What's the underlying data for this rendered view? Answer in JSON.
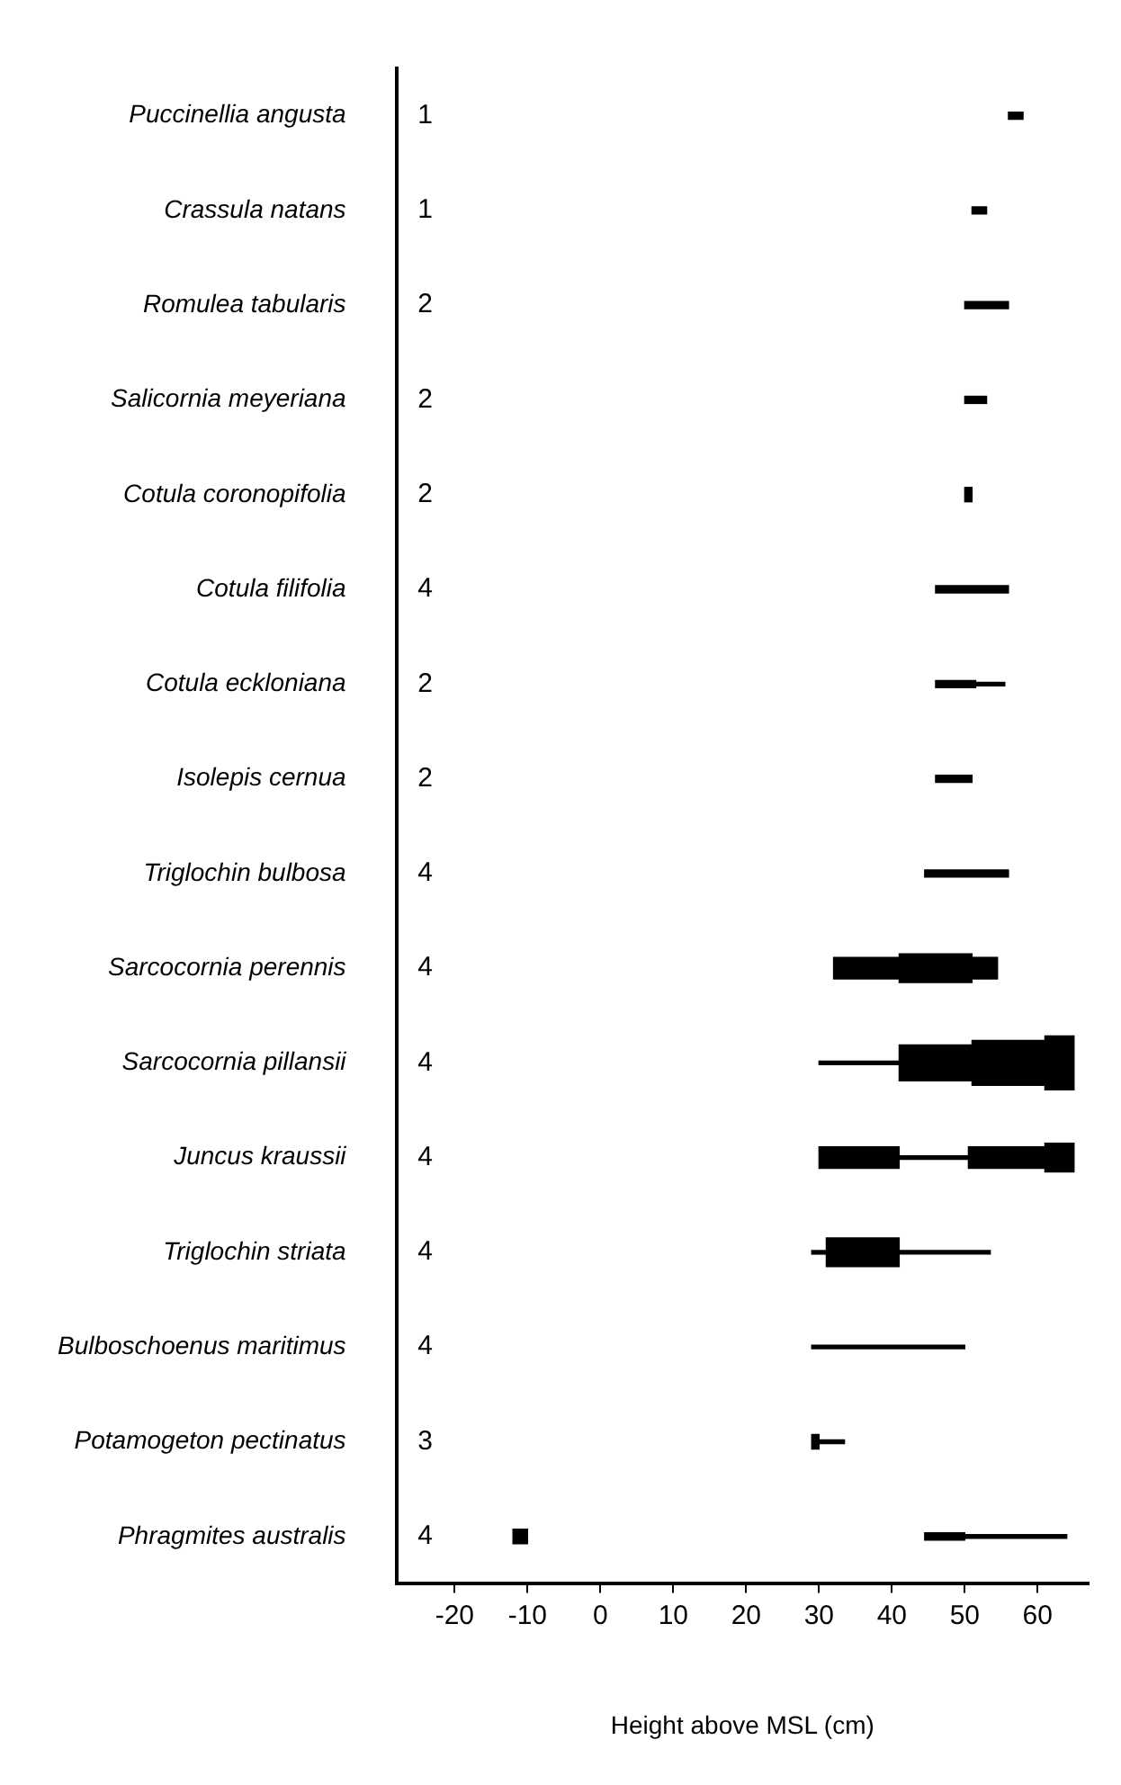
{
  "chart_data": {
    "type": "bar",
    "orientation": "horizontal",
    "xlabel": "Height above MSL (cm)",
    "categories": [
      "Puccinellia angusta",
      "Crassula natans",
      "Romulea tabularis",
      "Salicornia meyeriana",
      "Cotula coronopifolia",
      "Cotula filifolia",
      "Cotula eckloniana",
      "Isolepis cernua",
      "Triglochin bulbosa",
      "Sarcocornia perennis",
      "Sarcocornia pillansii",
      "Juncus kraussii",
      "Triglochin striata",
      "Bulboschoenus maritimus",
      "Potamogeton pectinatus",
      "Phragmites australis"
    ],
    "xlim": [
      -28,
      67
    ],
    "xticks": [
      -20,
      -10,
      0,
      10,
      20,
      30,
      40,
      50,
      60
    ],
    "series": [
      {
        "color": "#000000",
        "base": [
          null,
          null,
          null,
          null,
          null,
          null,
          51.5,
          null,
          null,
          null,
          30,
          41,
          29,
          29,
          30,
          50
        ],
        "values": [
          null,
          null,
          null,
          null,
          null,
          null,
          4,
          null,
          null,
          null,
          11,
          9.5,
          2,
          21,
          3.5,
          14
        ]
      },
      {
        "color": "#000000",
        "base": [
          null,
          null,
          null,
          null,
          null,
          null,
          null,
          null,
          null,
          null,
          null,
          null,
          41,
          null,
          null,
          null
        ],
        "values": [
          null,
          null,
          null,
          null,
          null,
          null,
          null,
          null,
          null,
          null,
          null,
          null,
          12.5,
          null,
          null,
          null
        ]
      },
      {
        "color": "#000000",
        "base": [
          56,
          51,
          50,
          50,
          null,
          46,
          46,
          46,
          44.5,
          null,
          null,
          null,
          null,
          null,
          null,
          44.5
        ],
        "values": [
          2,
          2,
          6,
          3,
          null,
          10,
          5.5,
          5,
          11.5,
          null,
          null,
          null,
          null,
          null,
          null,
          5.5
        ]
      },
      {
        "color": "#000000",
        "base": [
          null,
          null,
          null,
          null,
          50,
          null,
          null,
          null,
          null,
          null,
          null,
          null,
          null,
          null,
          29,
          -12
        ],
        "values": [
          null,
          null,
          null,
          null,
          1,
          null,
          null,
          null,
          null,
          null,
          null,
          null,
          null,
          null,
          1,
          2
        ]
      },
      {
        "color": "#000000",
        "base": [
          null,
          null,
          null,
          null,
          null,
          null,
          null,
          null,
          null,
          32,
          null,
          30,
          null,
          null,
          null,
          null
        ],
        "values": [
          null,
          null,
          null,
          null,
          null,
          null,
          null,
          null,
          null,
          9,
          null,
          11,
          null,
          null,
          null,
          null
        ]
      },
      {
        "color": "#000000",
        "base": [
          null,
          null,
          null,
          null,
          null,
          null,
          null,
          null,
          null,
          51,
          null,
          50.5,
          null,
          null,
          null,
          null
        ],
        "values": [
          null,
          null,
          null,
          null,
          null,
          null,
          null,
          null,
          null,
          3.5,
          null,
          10.5,
          null,
          null,
          null,
          null
        ]
      },
      {
        "color": "#000000",
        "base": [
          null,
          null,
          null,
          null,
          null,
          null,
          null,
          null,
          null,
          41,
          null,
          61,
          31,
          null,
          null,
          null
        ],
        "values": [
          null,
          null,
          null,
          null,
          null,
          null,
          null,
          null,
          null,
          10,
          null,
          4,
          10,
          null,
          null,
          null
        ]
      },
      {
        "color": "#000000",
        "base": [
          null,
          null,
          null,
          null,
          null,
          null,
          null,
          null,
          null,
          null,
          41,
          null,
          null,
          null,
          null,
          null
        ],
        "values": [
          null,
          null,
          null,
          null,
          null,
          null,
          null,
          null,
          null,
          null,
          10,
          null,
          null,
          null,
          null,
          null
        ]
      },
      {
        "color": "#000000",
        "base": [
          null,
          null,
          null,
          null,
          null,
          null,
          null,
          null,
          null,
          null,
          51,
          null,
          null,
          null,
          null,
          null
        ],
        "values": [
          null,
          null,
          null,
          null,
          null,
          null,
          null,
          null,
          null,
          null,
          10,
          null,
          null,
          null,
          null,
          null
        ]
      },
      {
        "color": "#000000",
        "base": [
          null,
          null,
          null,
          null,
          null,
          null,
          null,
          null,
          null,
          null,
          61,
          null,
          null,
          null,
          null,
          null
        ],
        "values": [
          null,
          null,
          null,
          null,
          null,
          null,
          null,
          null,
          null,
          null,
          4,
          null,
          null,
          null,
          null,
          null
        ]
      }
    ],
    "annotations": [
      "1",
      "1",
      "2",
      "2",
      "2",
      "4",
      "2",
      "2",
      "4",
      "4",
      "4",
      "4",
      "4",
      "4",
      "3",
      "4"
    ]
  }
}
